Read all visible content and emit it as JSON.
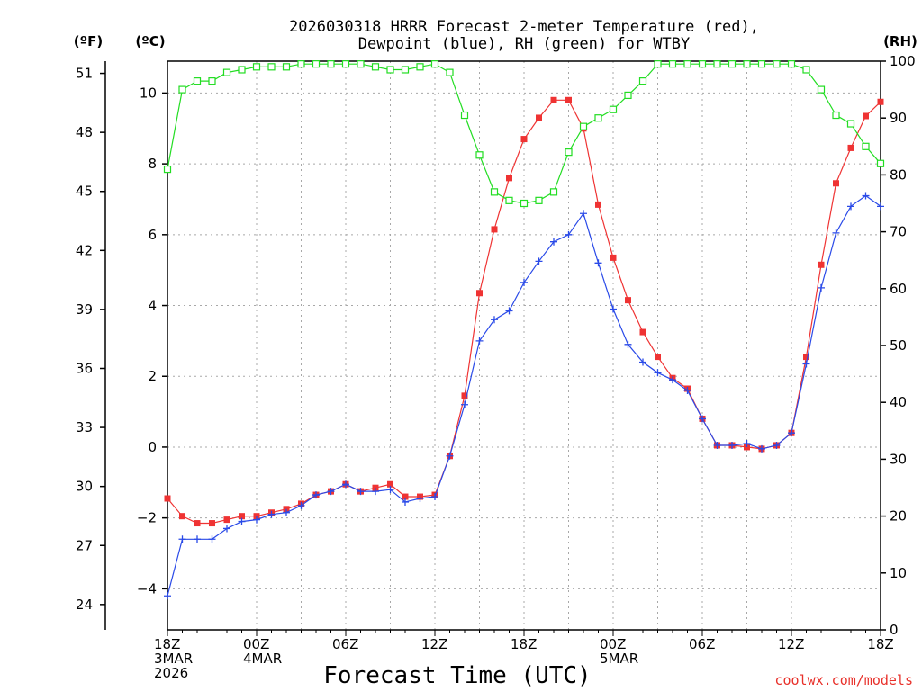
{
  "chart_data": {
    "type": "line",
    "title_lines": [
      "2026030318 HRRR Forecast 2-meter Temperature (red),",
      "Dewpoint (blue), RH (green) for WTBY"
    ],
    "xlabel": "Forecast Time (UTC)",
    "credit": "coolwx.com/models",
    "x": [
      0,
      1,
      2,
      3,
      4,
      5,
      6,
      7,
      8,
      9,
      10,
      11,
      12,
      13,
      14,
      15,
      16,
      17,
      18,
      19,
      20,
      21,
      22,
      23,
      24,
      25,
      26,
      27,
      28,
      29,
      30,
      31,
      32,
      33,
      34,
      35,
      36,
      37,
      38,
      39,
      40,
      41,
      42,
      43,
      44,
      45,
      46,
      47,
      48
    ],
    "xlim": [
      0,
      48
    ],
    "x_ticks": [
      {
        "x": 0,
        "lines": [
          "18Z",
          "3MAR",
          "2026"
        ]
      },
      {
        "x": 6,
        "lines": [
          "00Z",
          "4MAR"
        ]
      },
      {
        "x": 12,
        "lines": [
          "06Z"
        ]
      },
      {
        "x": 18,
        "lines": [
          "12Z"
        ]
      },
      {
        "x": 24,
        "lines": [
          "18Z"
        ]
      },
      {
        "x": 30,
        "lines": [
          "00Z",
          "5MAR"
        ]
      },
      {
        "x": 36,
        "lines": [
          "06Z"
        ]
      },
      {
        "x": 42,
        "lines": [
          "12Z"
        ]
      },
      {
        "x": 48,
        "lines": [
          "18Z"
        ]
      }
    ],
    "x_grid": [
      0,
      3,
      6,
      9,
      12,
      15,
      18,
      21,
      24,
      27,
      30,
      33,
      36,
      39,
      42,
      45,
      48
    ],
    "axes": {
      "celsius": {
        "unit_label": "(ºC)",
        "lim": [
          -5.16,
          10.9
        ],
        "ticks": [
          -4,
          -2,
          0,
          2,
          4,
          6,
          8,
          10
        ],
        "tick_labels": [
          "−4",
          "−2",
          "0",
          "2",
          "4",
          "6",
          "8",
          "10"
        ]
      },
      "fahrenheit": {
        "unit_label": "(ºF)",
        "ticks": [
          24,
          27,
          30,
          33,
          36,
          39,
          42,
          45,
          48,
          51
        ],
        "tick_labels": [
          "24",
          "27",
          "30",
          "33",
          "36",
          "39",
          "42",
          "45",
          "48",
          "51"
        ]
      },
      "rh": {
        "unit_label": "(RH)",
        "lim": [
          0,
          100
        ],
        "ticks": [
          0,
          10,
          20,
          30,
          40,
          50,
          60,
          70,
          80,
          90,
          100
        ],
        "tick_labels": [
          "0",
          "10",
          "20",
          "30",
          "40",
          "50",
          "60",
          "70",
          "80",
          "90",
          "100"
        ]
      }
    },
    "series": [
      {
        "name": "Temperature",
        "axis": "celsius",
        "color": "#ef3333",
        "marker": "filled-square",
        "values": [
          -1.45,
          -1.95,
          -2.15,
          -2.15,
          -2.05,
          -1.95,
          -1.95,
          -1.85,
          -1.75,
          -1.6,
          -1.35,
          -1.25,
          -1.05,
          -1.25,
          -1.15,
          -1.05,
          -1.4,
          -1.4,
          -1.35,
          -0.25,
          1.45,
          4.35,
          6.15,
          7.6,
          8.7,
          9.3,
          9.8,
          9.8,
          9.0,
          6.85,
          5.35,
          4.15,
          3.25,
          2.55,
          1.95,
          1.65,
          0.8,
          0.05,
          0.05,
          0.0,
          -0.05,
          0.05,
          0.4,
          2.55,
          5.15,
          7.45,
          8.45,
          9.35,
          9.75
        ]
      },
      {
        "name": "Dewpoint",
        "axis": "celsius",
        "color": "#2a4ae8",
        "marker": "plus",
        "values": [
          -4.2,
          -2.6,
          -2.6,
          -2.6,
          -2.3,
          -2.1,
          -2.05,
          -1.9,
          -1.85,
          -1.65,
          -1.35,
          -1.25,
          -1.05,
          -1.25,
          -1.25,
          -1.2,
          -1.55,
          -1.45,
          -1.4,
          -0.25,
          1.2,
          3.0,
          3.6,
          3.85,
          4.65,
          5.25,
          5.8,
          6.0,
          6.6,
          5.2,
          3.9,
          2.9,
          2.4,
          2.1,
          1.9,
          1.6,
          0.8,
          0.05,
          0.05,
          0.1,
          -0.05,
          0.05,
          0.4,
          2.35,
          4.5,
          6.05,
          6.8,
          7.1,
          6.8
        ]
      },
      {
        "name": "RH",
        "axis": "rh",
        "color": "#22dd22",
        "marker": "open-square",
        "values": [
          81,
          95,
          96.5,
          96.5,
          98,
          98.5,
          99,
          99,
          99,
          99.5,
          99.5,
          99.5,
          99.5,
          99.5,
          99,
          98.5,
          98.5,
          99,
          99.5,
          98,
          90.5,
          83.5,
          77,
          75.5,
          75,
          75.5,
          77,
          84,
          88.5,
          90,
          91.5,
          94,
          96.5,
          99.5,
          99.5,
          99.5,
          99.5,
          99.5,
          99.5,
          99.5,
          99.5,
          99.5,
          99.5,
          98.5,
          95,
          90.5,
          89,
          85,
          82
        ]
      }
    ]
  }
}
